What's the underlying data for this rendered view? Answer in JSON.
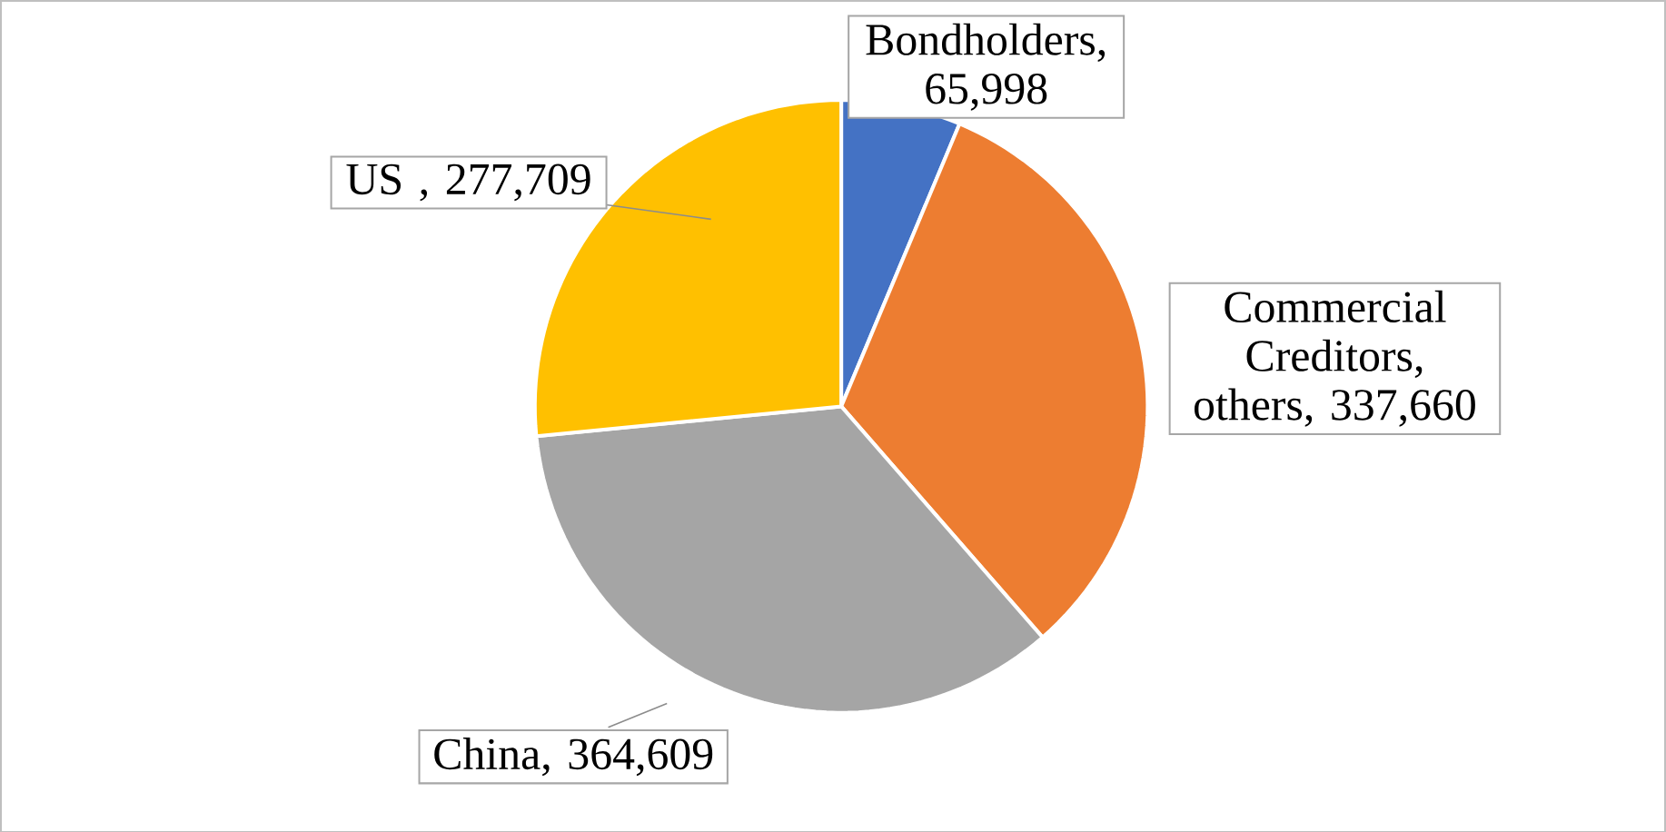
{
  "chart_data": {
    "type": "pie",
    "categories": [
      "Bondholders, 65,998",
      "Commercial Creditors, others, 337,660",
      "China, 364,609",
      "US , 277,709"
    ],
    "values": [
      65998,
      337660,
      364609,
      277709
    ],
    "colors": [
      "#4472c4",
      "#ed7d31",
      "#a5a5a5",
      "#ffc000"
    ]
  }
}
